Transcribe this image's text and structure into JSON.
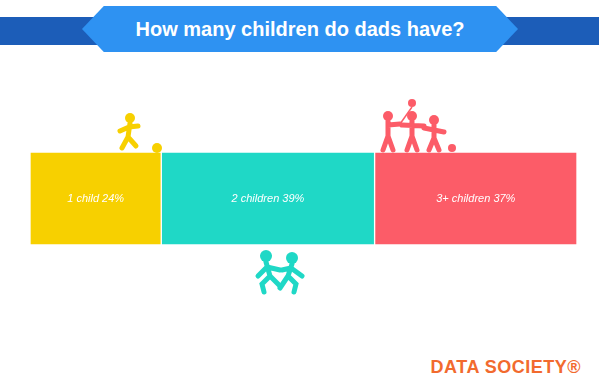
{
  "chart_data": {
    "type": "bar",
    "title": "How many children do dads have?",
    "orientation": "horizontal",
    "stacked": true,
    "data_labels": true,
    "tick_labels": false,
    "grid": false,
    "xlim": [
      0,
      100
    ],
    "series": [
      {
        "color": "#f7d000",
        "values": [
          24
        ],
        "value_labels": [
          "1 child 24%"
        ]
      },
      {
        "color": "#1fd8c6",
        "values": [
          39
        ],
        "value_labels": [
          "2 children 39%"
        ]
      },
      {
        "color": "#fc5c68",
        "values": [
          37
        ],
        "value_labels": [
          "3+ children 37%"
        ]
      }
    ],
    "annotations": [
      "DATA SOCIETY®"
    ]
  }
}
